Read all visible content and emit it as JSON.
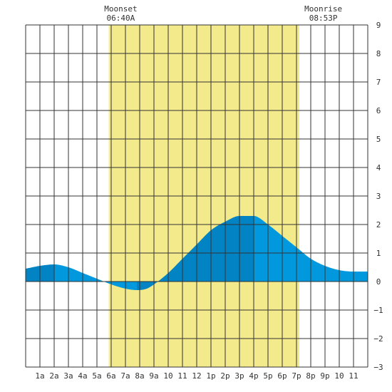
{
  "chart_data": {
    "type": "area",
    "title": "",
    "xlabel": "",
    "ylabel": "",
    "x_range_hours": [
      0,
      24
    ],
    "ylim": [
      -3,
      9
    ],
    "y_ticks": [
      -3,
      -2,
      -1,
      0,
      1,
      2,
      3,
      4,
      5,
      6,
      7,
      8,
      9
    ],
    "x_tick_labels": [
      "1a",
      "2a",
      "3a",
      "4a",
      "5a",
      "6a",
      "7a",
      "8a",
      "9a",
      "10",
      "11",
      "12",
      "1p",
      "2p",
      "3p",
      "4p",
      "5p",
      "6p",
      "7p",
      "8p",
      "9p",
      "10",
      "11"
    ],
    "grid": true,
    "daylight_band_hours": [
      5.83,
      19.2
    ],
    "annotations": [
      {
        "label": "Moonset",
        "time": "06:40A",
        "hour": 6.67
      },
      {
        "label": "Moonrise",
        "time": "08:53P",
        "hour": 20.88
      }
    ],
    "series": [
      {
        "hours": [
          0,
          1,
          2,
          3,
          4,
          5,
          6,
          7,
          7.8,
          8.5,
          9,
          10,
          11,
          12,
          13,
          14,
          15,
          16,
          17,
          18,
          19,
          20,
          21,
          22,
          23,
          24
        ],
        "values": [
          0.45,
          0.55,
          0.6,
          0.5,
          0.3,
          0.1,
          -0.1,
          -0.25,
          -0.3,
          -0.25,
          -0.1,
          0.3,
          0.8,
          1.3,
          1.8,
          2.1,
          2.3,
          2.3,
          2.0,
          1.6,
          1.2,
          0.8,
          0.55,
          0.4,
          0.35,
          0.35
        ]
      }
    ],
    "shading_segments": [
      {
        "from": 0,
        "to": 2,
        "shade": "dark"
      },
      {
        "from": 2,
        "to": 6,
        "shade": "light"
      },
      {
        "from": 6,
        "to": 7.8,
        "shade": "light"
      },
      {
        "from": 7.8,
        "to": 9,
        "shade": "dark"
      },
      {
        "from": 9,
        "to": 16,
        "shade": "dark"
      },
      {
        "from": 16,
        "to": 24,
        "shade": "light"
      }
    ],
    "colors": {
      "daylight": "#f3ea8b",
      "tide_dark": "#0283c3",
      "tide_light": "#0298de",
      "grid": "#333333",
      "text": "#333333"
    }
  }
}
